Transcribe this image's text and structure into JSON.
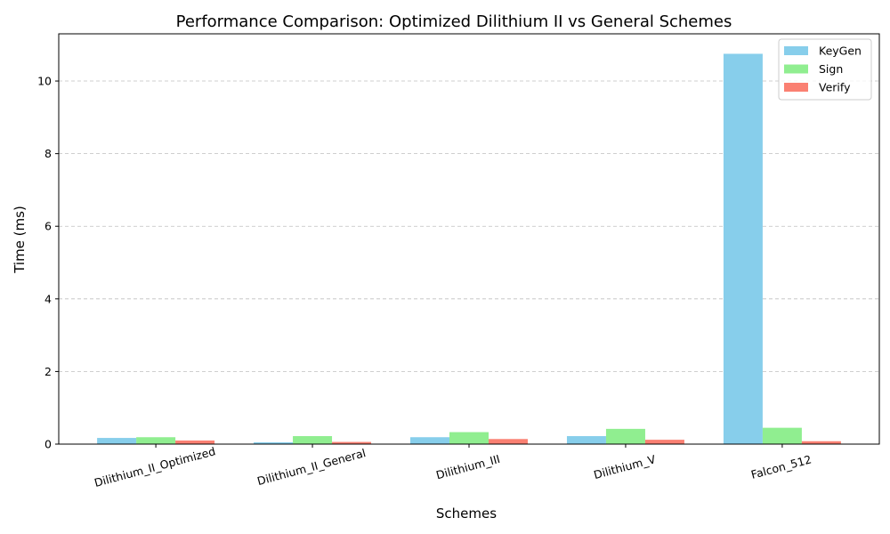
{
  "chart_data": {
    "type": "bar",
    "title": "Performance Comparison: Optimized Dilithium II vs General Schemes",
    "xlabel": "Schemes",
    "ylabel": "Time (ms)",
    "categories": [
      "Dilithium_II_Optimized",
      "Dilithium_II_General",
      "Dilithium_III",
      "Dilithium_V",
      "Falcon_512"
    ],
    "series": [
      {
        "name": "KeyGen",
        "color": "#87CEEB",
        "values": [
          0.17,
          0.05,
          0.19,
          0.22,
          10.75
        ]
      },
      {
        "name": "Sign",
        "color": "#90EE90",
        "values": [
          0.19,
          0.22,
          0.33,
          0.42,
          0.45
        ]
      },
      {
        "name": "Verify",
        "color": "#FA8072",
        "values": [
          0.1,
          0.06,
          0.14,
          0.12,
          0.08
        ]
      }
    ],
    "ylim": [
      0,
      11.3
    ],
    "yticks": [
      0,
      2,
      4,
      6,
      8,
      10
    ],
    "grid": "y-dashed",
    "legend_position": "top-right"
  }
}
